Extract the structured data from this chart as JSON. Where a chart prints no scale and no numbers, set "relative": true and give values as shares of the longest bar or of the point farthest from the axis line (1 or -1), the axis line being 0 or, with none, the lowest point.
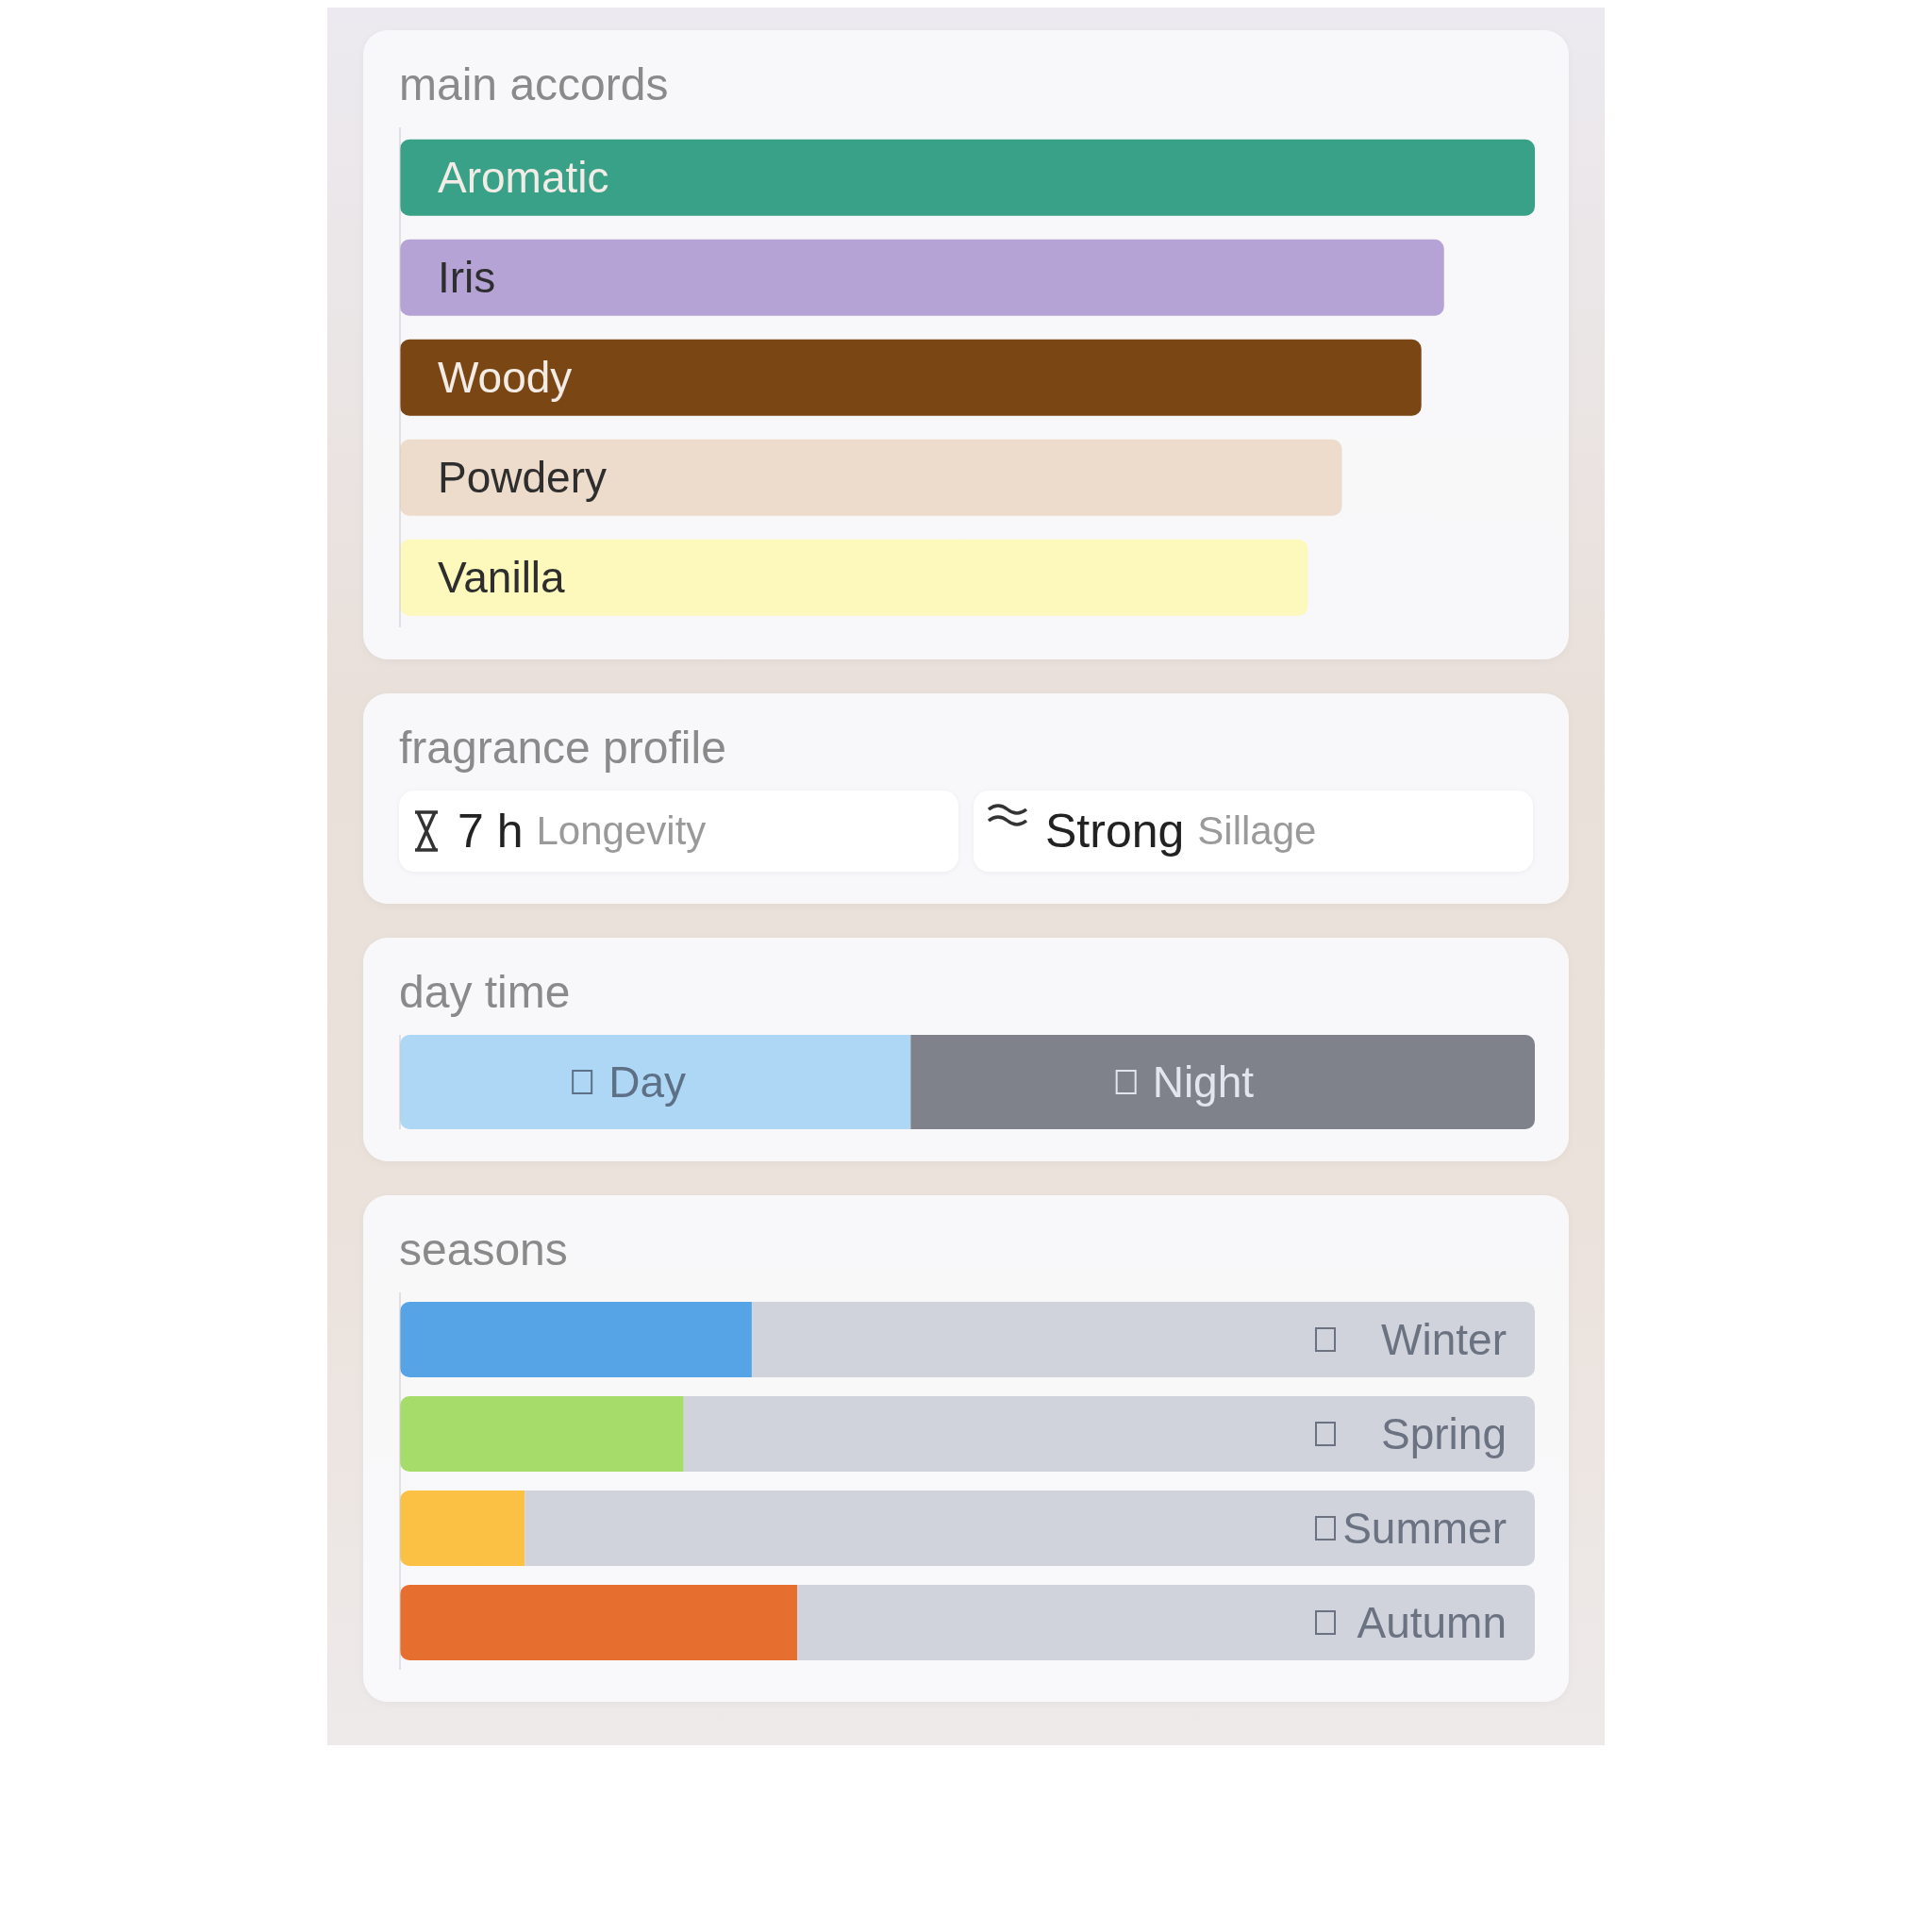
{
  "chart_data": [
    {
      "type": "bar",
      "orientation": "horizontal",
      "relative": true,
      "title": "main accords",
      "categories": [
        "Aromatic",
        "Iris",
        "Woody",
        "Powdery",
        "Vanilla"
      ],
      "values": [
        1,
        0.92,
        0.9,
        0.83,
        0.8
      ],
      "colors": [
        "#38a188",
        "#b5a3d6",
        "#7a4614",
        "#eddccb",
        "#fdf8bb"
      ]
    },
    {
      "type": "other",
      "title": "fragrance profile",
      "annotations": [
        "7 h",
        "Longevity",
        "Strong",
        "Sillage"
      ]
    },
    {
      "type": "bar",
      "orientation": "horizontal",
      "stacked": true,
      "relative": true,
      "title": "day time",
      "categories": [
        null
      ],
      "series": [
        {
          "name": "Day",
          "color": "#aed6f5",
          "values": [
            0.45
          ]
        },
        {
          "name": "Night",
          "color": "#7f828a",
          "values": [
            0.55
          ]
        }
      ]
    },
    {
      "type": "bar",
      "orientation": "horizontal",
      "stacked": true,
      "relative": true,
      "title": "seasons",
      "categories": [
        "Winter",
        "Spring",
        "Summer",
        "Autumn"
      ],
      "series": [
        {
          "colors": [
            "#56a3e6",
            "#a6dc6a",
            "#fbc144",
            "#e66f2f"
          ],
          "values": [
            0.31,
            0.25,
            0.11,
            0.35
          ]
        },
        {
          "color": "#d0d3dc",
          "values": [
            0.69,
            0.75,
            0.89,
            0.65
          ]
        }
      ]
    }
  ]
}
